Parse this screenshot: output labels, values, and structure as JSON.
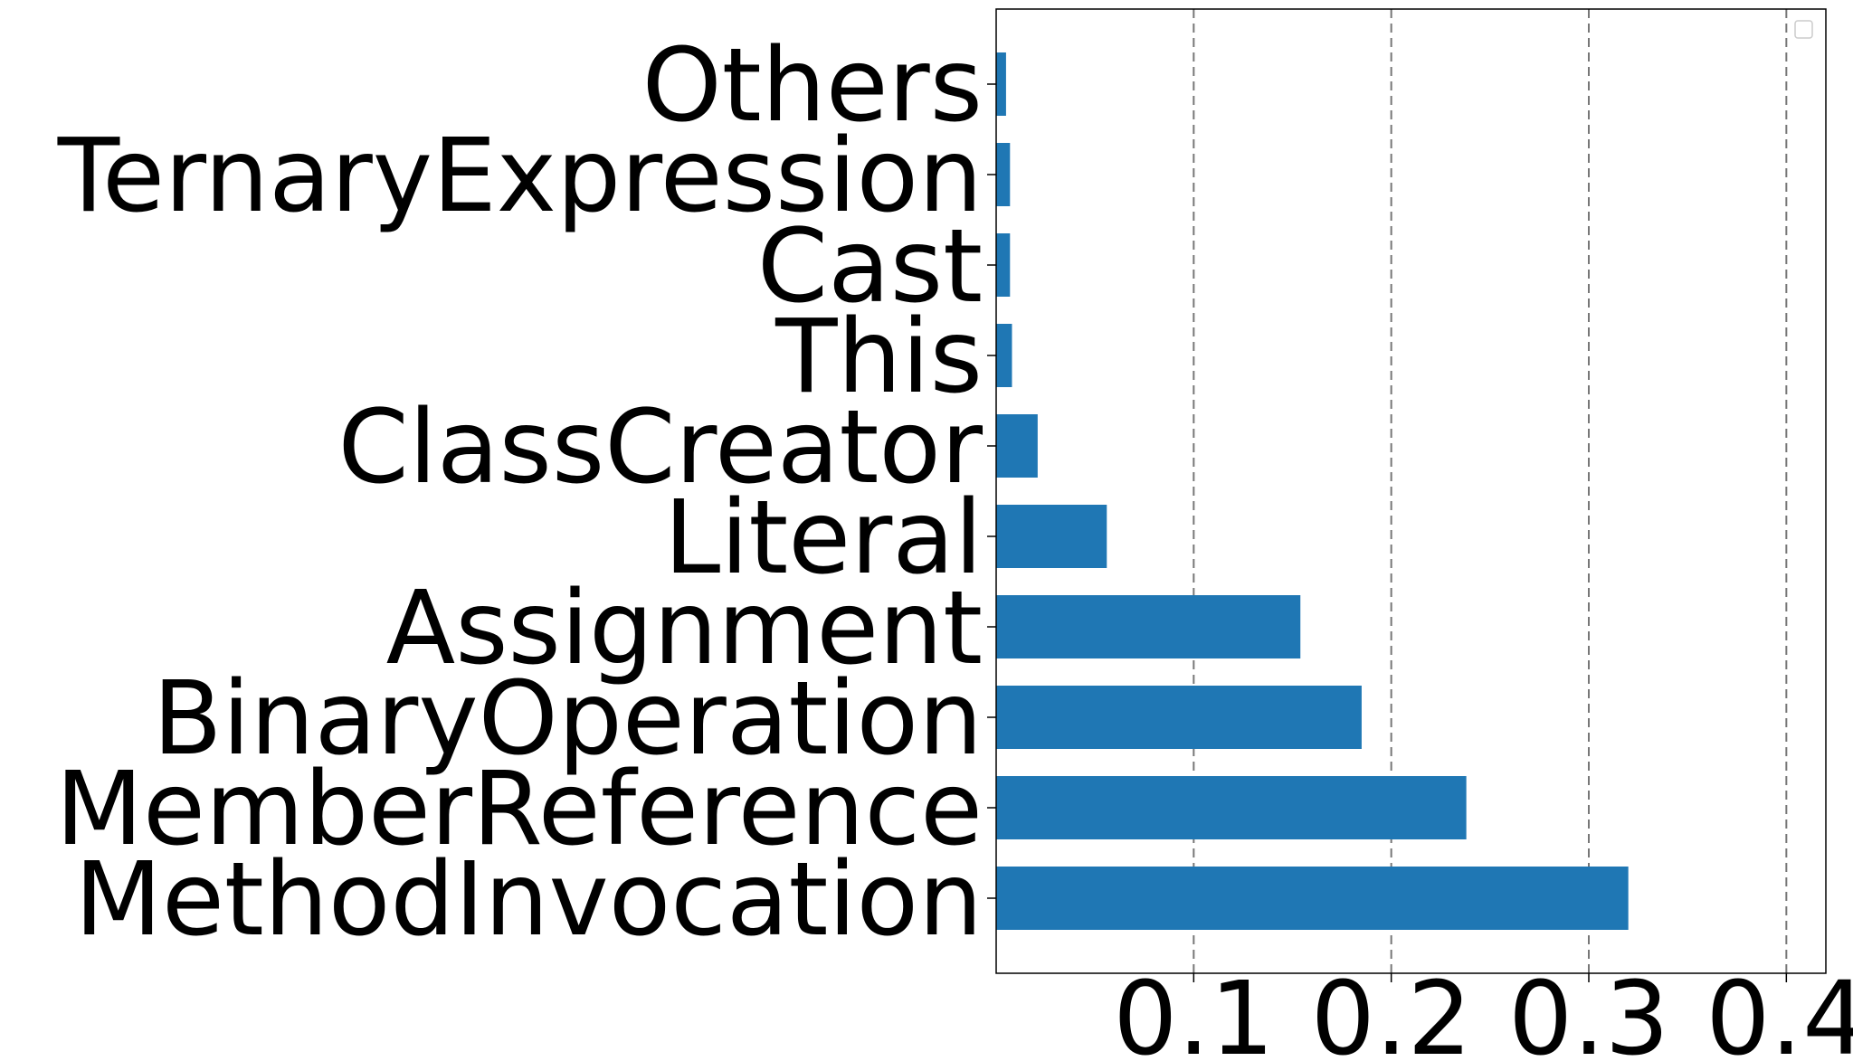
{
  "chart_data": {
    "type": "bar",
    "orientation": "horizontal",
    "categories": [
      "MethodInvocation",
      "MemberReference",
      "BinaryOperation",
      "Assignment",
      "Literal",
      "ClassCreator",
      "This",
      "Cast",
      "TernaryExpression",
      "Others"
    ],
    "values": [
      0.32,
      0.238,
      0.185,
      0.154,
      0.056,
      0.021,
      0.008,
      0.007,
      0.007,
      0.005
    ],
    "xlim": [
      0,
      0.42
    ],
    "xticks": [
      0.1,
      0.2,
      0.3,
      0.4
    ],
    "xtick_labels": [
      "0.1",
      "0.2",
      "0.3",
      "0.4"
    ],
    "grid": "x-axis dashed",
    "legend": "top-right, empty",
    "colors": {
      "bar": "#1f77b4",
      "grid": "#777777"
    },
    "title": "",
    "xlabel": "",
    "ylabel": ""
  }
}
